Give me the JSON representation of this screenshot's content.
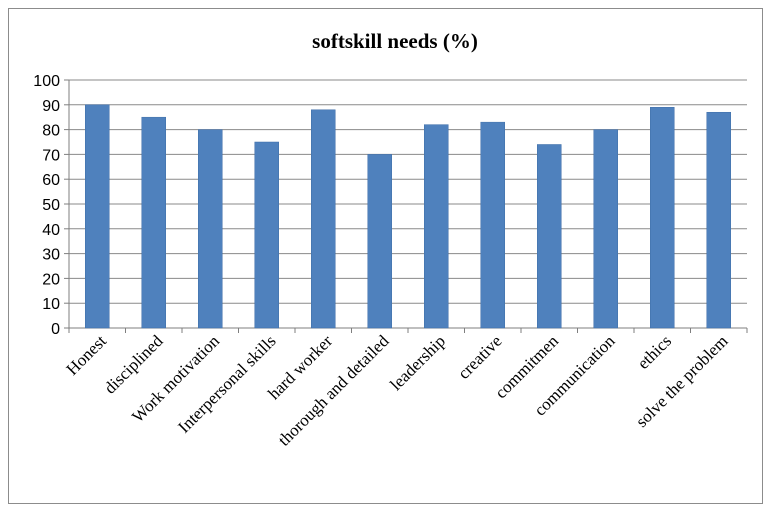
{
  "chart_data": {
    "type": "bar",
    "title": "softskill needs (%)",
    "xlabel": "",
    "ylabel": "",
    "categories": [
      "Honest",
      "disciplined",
      "Work motivation",
      "Interpersonal skills",
      "hard worker",
      "thorough and detailed",
      "leadership",
      "creative",
      "commitmen",
      "communication",
      "ethics",
      "solve the problem"
    ],
    "values": [
      90,
      85,
      80,
      75,
      88,
      70,
      82,
      83,
      74,
      80,
      89,
      87
    ],
    "ylim": [
      0,
      100
    ],
    "yticks": [
      0,
      10,
      20,
      30,
      40,
      50,
      60,
      70,
      80,
      90,
      100
    ],
    "grid": true,
    "legend": "none",
    "bar_color": "#4f81bd"
  }
}
